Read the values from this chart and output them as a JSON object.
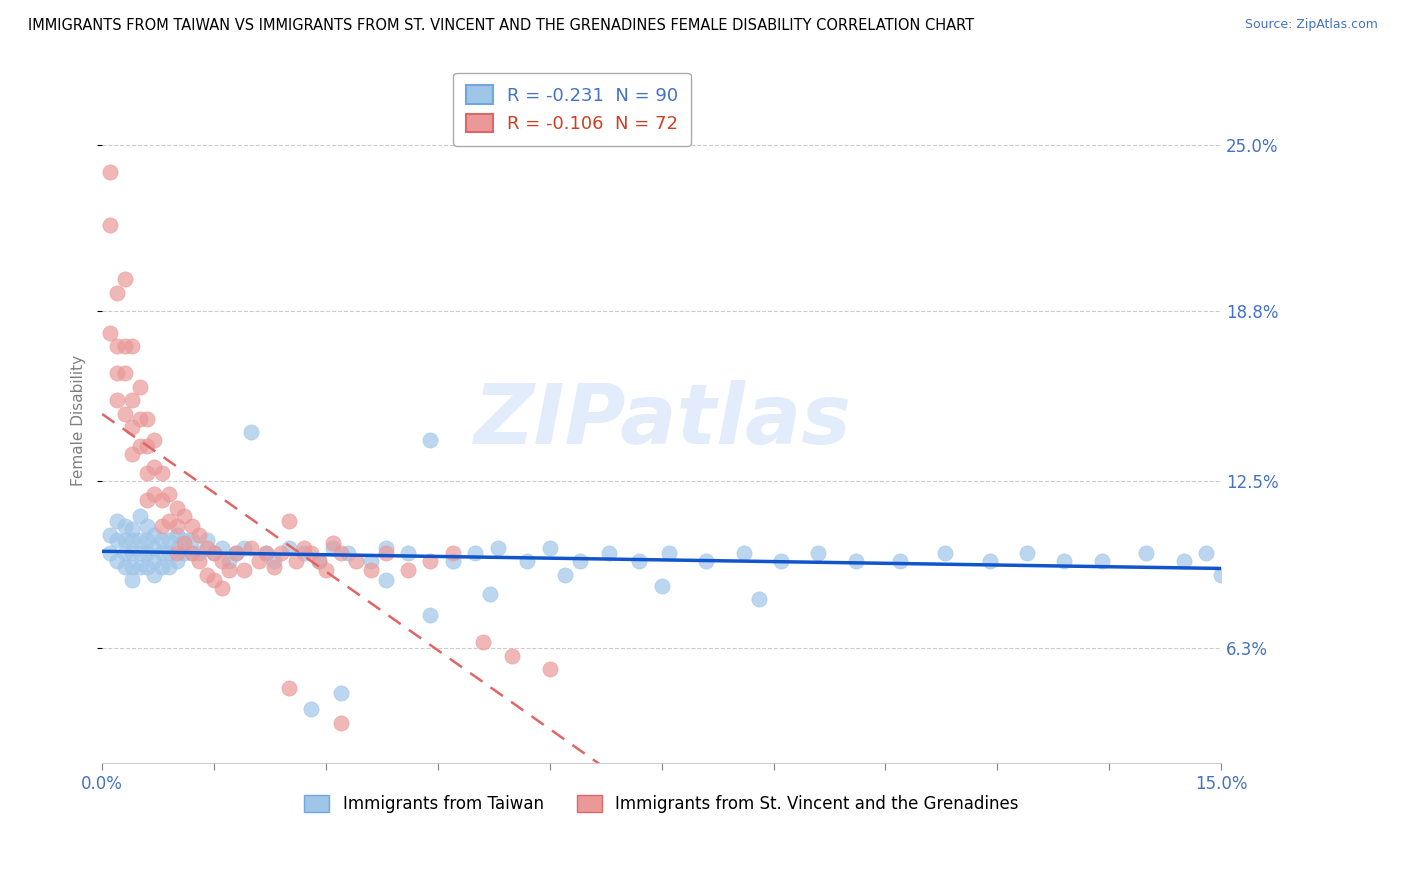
{
  "title": "IMMIGRANTS FROM TAIWAN VS IMMIGRANTS FROM ST. VINCENT AND THE GRENADINES FEMALE DISABILITY CORRELATION CHART",
  "source": "Source: ZipAtlas.com",
  "ylabel": "Female Disability",
  "yticks": [
    0.063,
    0.125,
    0.188,
    0.25
  ],
  "ytick_labels": [
    "6.3%",
    "12.5%",
    "18.8%",
    "25.0%"
  ],
  "xmin": 0.0,
  "xmax": 0.15,
  "ymin": 0.02,
  "ymax": 0.275,
  "legend1_label": "R = -0.231  N = 90",
  "legend2_label": "R = -0.106  N = 72",
  "color_taiwan": "#9fc5e8",
  "color_stvincent": "#ea9999",
  "trendline_taiwan_color": "#1155cc",
  "trendline_stvincent_color": "#e06666",
  "watermark": "ZIPatlas",
  "taiwan_x": [
    0.001,
    0.001,
    0.002,
    0.002,
    0.002,
    0.003,
    0.003,
    0.003,
    0.003,
    0.004,
    0.004,
    0.004,
    0.004,
    0.004,
    0.005,
    0.005,
    0.005,
    0.005,
    0.006,
    0.006,
    0.006,
    0.006,
    0.007,
    0.007,
    0.007,
    0.007,
    0.008,
    0.008,
    0.008,
    0.009,
    0.009,
    0.009,
    0.01,
    0.01,
    0.01,
    0.011,
    0.011,
    0.012,
    0.012,
    0.013,
    0.014,
    0.015,
    0.016,
    0.017,
    0.018,
    0.019,
    0.02,
    0.022,
    0.023,
    0.025,
    0.027,
    0.029,
    0.031,
    0.033,
    0.036,
    0.038,
    0.041,
    0.044,
    0.047,
    0.05,
    0.053,
    0.057,
    0.06,
    0.064,
    0.068,
    0.072,
    0.076,
    0.081,
    0.086,
    0.091,
    0.096,
    0.101,
    0.107,
    0.113,
    0.119,
    0.124,
    0.129,
    0.134,
    0.14,
    0.145,
    0.148,
    0.15,
    0.052,
    0.038,
    0.044,
    0.062,
    0.075,
    0.088,
    0.032,
    0.028
  ],
  "taiwan_y": [
    0.105,
    0.098,
    0.11,
    0.103,
    0.095,
    0.108,
    0.103,
    0.098,
    0.093,
    0.107,
    0.103,
    0.098,
    0.093,
    0.088,
    0.112,
    0.103,
    0.098,
    0.093,
    0.108,
    0.103,
    0.098,
    0.093,
    0.105,
    0.1,
    0.095,
    0.09,
    0.103,
    0.098,
    0.093,
    0.103,
    0.098,
    0.093,
    0.105,
    0.1,
    0.095,
    0.103,
    0.098,
    0.103,
    0.098,
    0.098,
    0.103,
    0.098,
    0.1,
    0.095,
    0.098,
    0.1,
    0.143,
    0.098,
    0.095,
    0.1,
    0.098,
    0.095,
    0.1,
    0.098,
    0.095,
    0.1,
    0.098,
    0.14,
    0.095,
    0.098,
    0.1,
    0.095,
    0.1,
    0.095,
    0.098,
    0.095,
    0.098,
    0.095,
    0.098,
    0.095,
    0.098,
    0.095,
    0.095,
    0.098,
    0.095,
    0.098,
    0.095,
    0.095,
    0.098,
    0.095,
    0.098,
    0.09,
    0.083,
    0.088,
    0.075,
    0.09,
    0.086,
    0.081,
    0.046,
    0.04
  ],
  "stvincent_x": [
    0.001,
    0.001,
    0.001,
    0.002,
    0.002,
    0.002,
    0.002,
    0.003,
    0.003,
    0.003,
    0.003,
    0.004,
    0.004,
    0.004,
    0.004,
    0.005,
    0.005,
    0.005,
    0.006,
    0.006,
    0.006,
    0.006,
    0.007,
    0.007,
    0.007,
    0.008,
    0.008,
    0.008,
    0.009,
    0.009,
    0.01,
    0.01,
    0.01,
    0.011,
    0.011,
    0.012,
    0.012,
    0.013,
    0.013,
    0.014,
    0.014,
    0.015,
    0.015,
    0.016,
    0.016,
    0.017,
    0.018,
    0.019,
    0.02,
    0.021,
    0.022,
    0.023,
    0.024,
    0.025,
    0.026,
    0.027,
    0.028,
    0.029,
    0.03,
    0.031,
    0.032,
    0.034,
    0.036,
    0.038,
    0.041,
    0.044,
    0.047,
    0.051,
    0.055,
    0.06,
    0.025,
    0.032
  ],
  "stvincent_y": [
    0.24,
    0.22,
    0.18,
    0.195,
    0.175,
    0.165,
    0.155,
    0.2,
    0.175,
    0.165,
    0.15,
    0.175,
    0.155,
    0.145,
    0.135,
    0.16,
    0.148,
    0.138,
    0.148,
    0.138,
    0.128,
    0.118,
    0.14,
    0.13,
    0.12,
    0.128,
    0.118,
    0.108,
    0.12,
    0.11,
    0.115,
    0.108,
    0.098,
    0.112,
    0.102,
    0.108,
    0.098,
    0.105,
    0.095,
    0.1,
    0.09,
    0.098,
    0.088,
    0.095,
    0.085,
    0.092,
    0.098,
    0.092,
    0.1,
    0.095,
    0.098,
    0.093,
    0.098,
    0.11,
    0.095,
    0.1,
    0.098,
    0.095,
    0.092,
    0.102,
    0.098,
    0.095,
    0.092,
    0.098,
    0.092,
    0.095,
    0.098,
    0.065,
    0.06,
    0.055,
    0.048,
    0.035
  ]
}
